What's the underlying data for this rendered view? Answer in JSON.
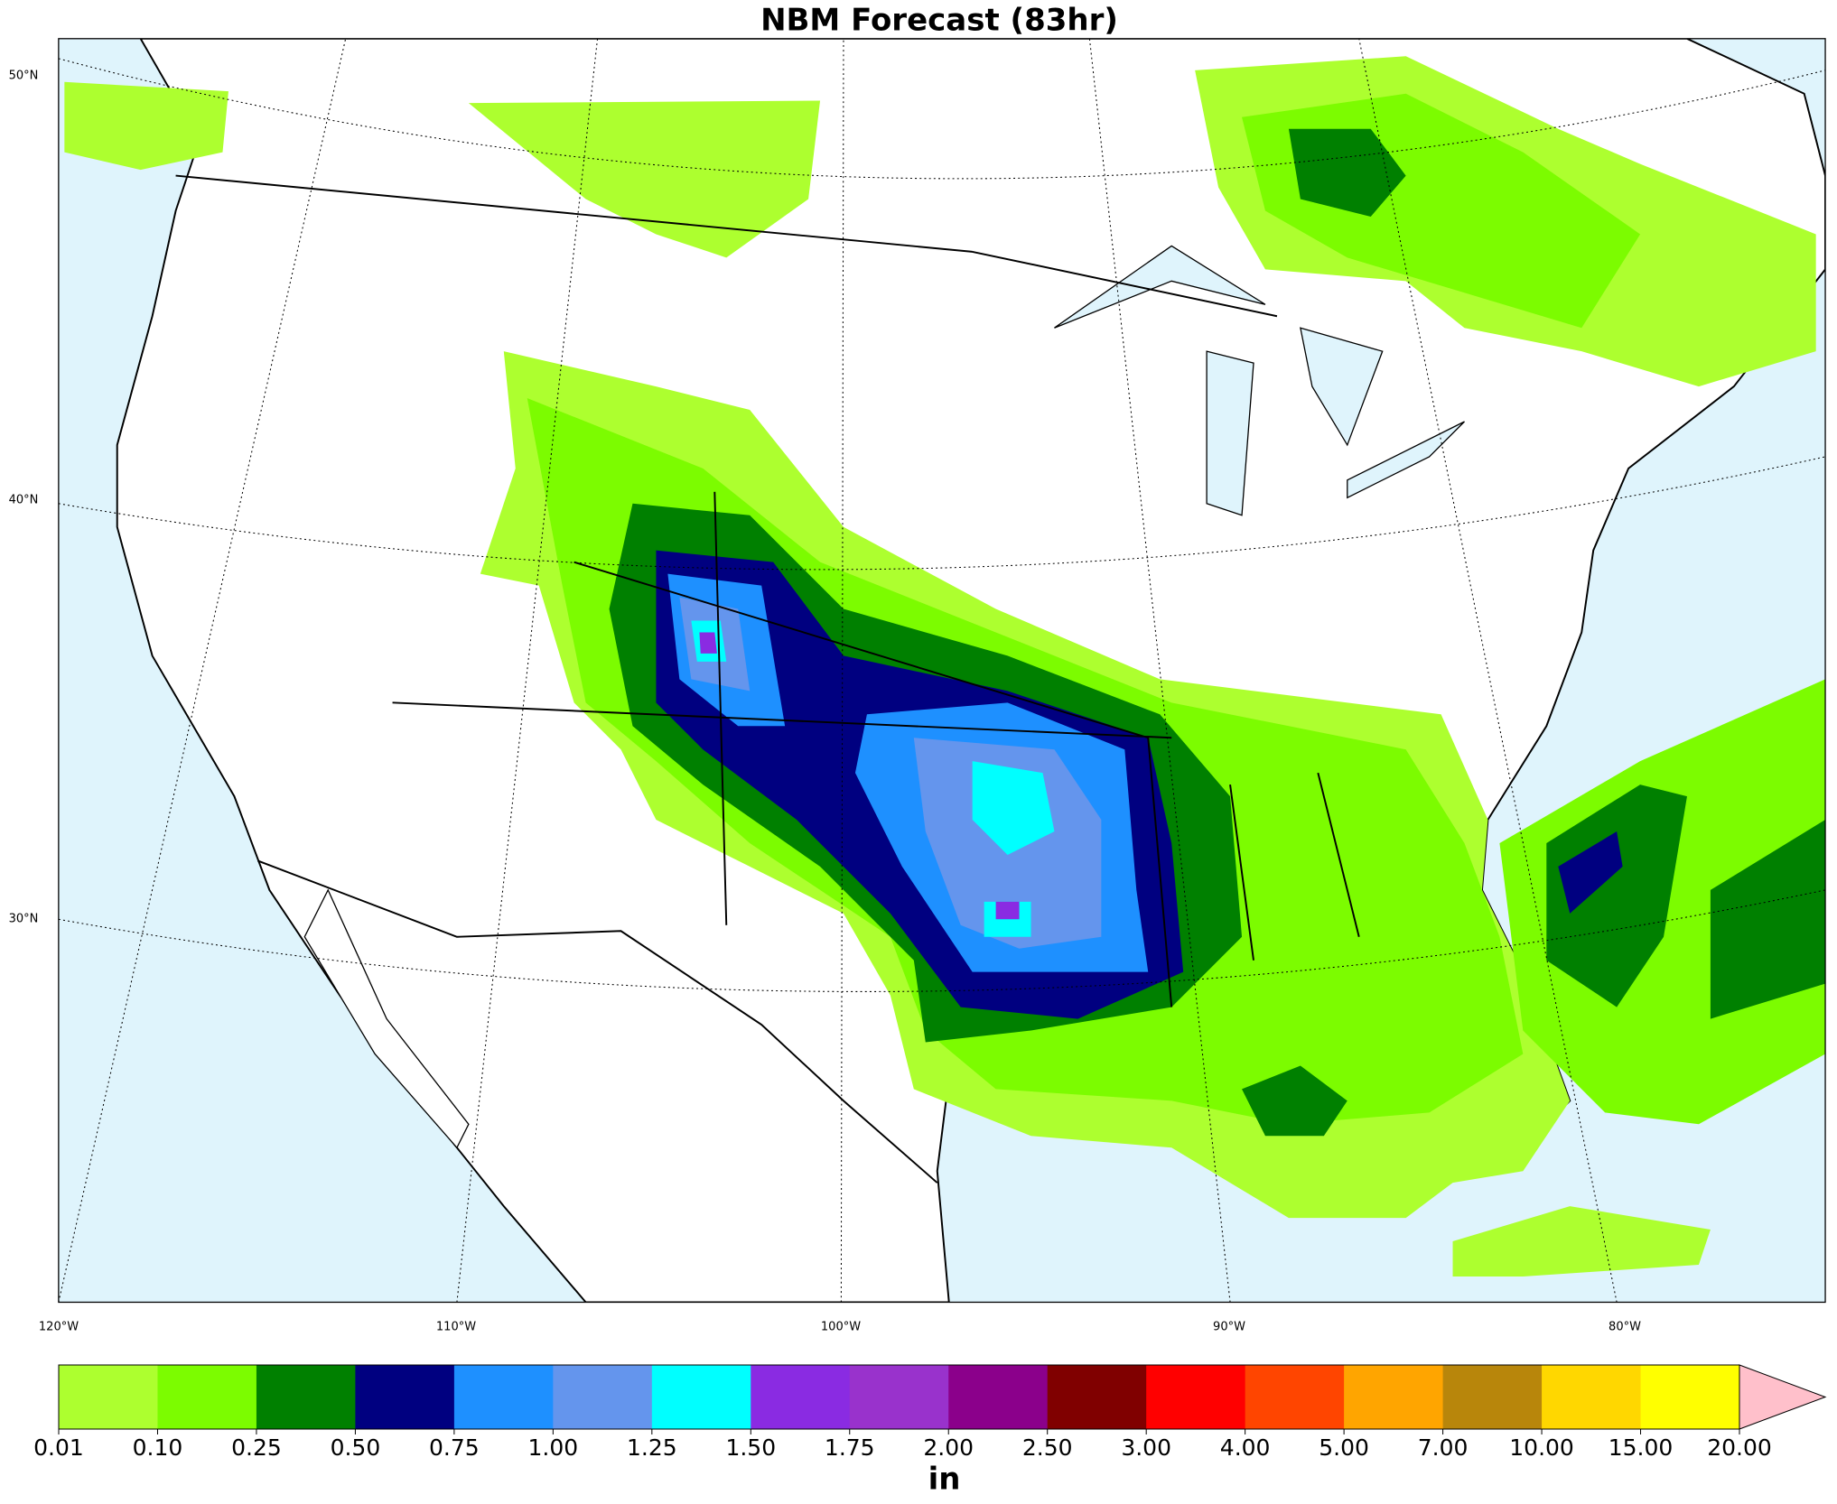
{
  "title": "NBM Forecast (83hr)",
  "map": {
    "lat_labels": [
      "50°N",
      "40°N",
      "30°N"
    ],
    "lon_labels": [
      "120°W",
      "110°W",
      "100°W",
      "90°W",
      "80°W"
    ]
  },
  "colorbar": {
    "ticks": [
      "0.01",
      "0.10",
      "0.25",
      "0.50",
      "0.75",
      "1.00",
      "1.25",
      "1.50",
      "1.75",
      "2.00",
      "2.50",
      "3.00",
      "4.00",
      "5.00",
      "7.00",
      "10.00",
      "15.00",
      "20.00"
    ],
    "colors": [
      "#adff2f",
      "#7cfc00",
      "#008000",
      "#000080",
      "#1e90ff",
      "#6495ed",
      "#00ffff",
      "#8a2be2",
      "#9932cc",
      "#8b008b",
      "#800000",
      "#ff0000",
      "#ff4500",
      "#ffa500",
      "#b8860b",
      "#ffd700",
      "#ffff00"
    ],
    "extend_color": "#ffc0cb",
    "unit": "in"
  }
}
